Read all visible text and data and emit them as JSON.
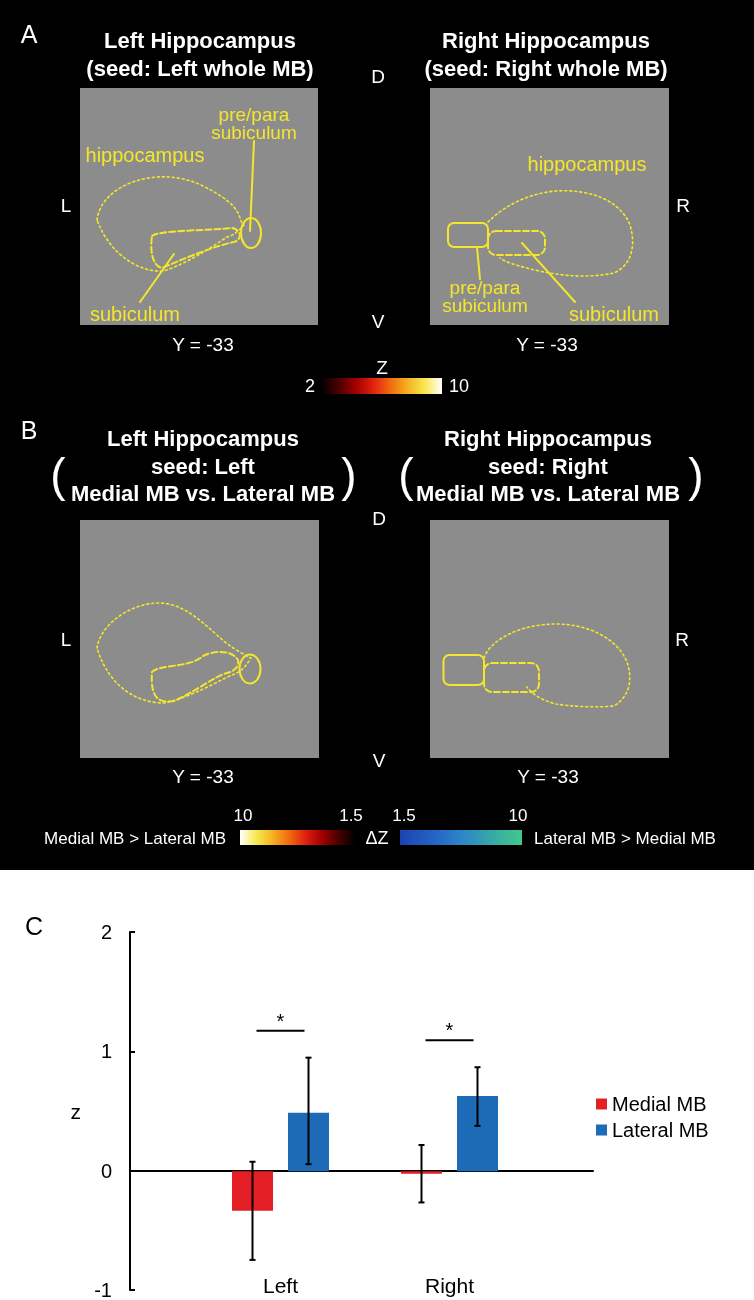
{
  "chart_data": [
    {
      "type": "other",
      "title": "A",
      "annotations": [
        "Left Hippocampus\n(seed: Left whole MB)",
        "Right Hippocampus\n(seed: Right whole MB)",
        "D",
        "V",
        "L",
        "R",
        "Y = -33",
        "Y = -33",
        "hippocampus",
        "pre/para\nsubiculum",
        "subiculum",
        "hippocampus",
        "pre/para\nsubiculum",
        "subiculum",
        "2",
        "10"
      ],
      "clabel": "Z"
    },
    {
      "type": "other",
      "title": "B",
      "annotations": [
        "Left Hippocampus\nseed: Left\nMedial MB vs. Lateral MB",
        "(",
        ")",
        "Right Hippocampus\nseed: Right\nMedial MB vs. Lateral MB",
        "(",
        ")",
        "D",
        "V",
        "L",
        "R",
        "Y = -33",
        "Y = -33",
        "Medial MB > Lateral MB",
        "Lateral MB > Medial MB",
        "10",
        "1.5",
        "1.5",
        "10"
      ],
      "clabel": "ΔZ"
    },
    {
      "type": "bar",
      "title": "C",
      "ylabel": "z",
      "categories": [
        "Left",
        "Right"
      ],
      "series": [
        {
          "name": "Medial MB",
          "color": "#e41e25",
          "values": [
            -0.33,
            -0.02
          ],
          "errors": [
            [
              -0.74,
              0.08
            ],
            [
              -0.26,
              0.22
            ]
          ]
        },
        {
          "name": "Lateral MB",
          "color": "#1d6bb6",
          "values": [
            0.49,
            0.63
          ],
          "errors": [
            [
              0.06,
              0.95
            ],
            [
              0.38,
              0.87
            ]
          ]
        }
      ],
      "ylim": [
        -1,
        2
      ],
      "yticks": [
        -1,
        0,
        1,
        2
      ],
      "legend": "right",
      "annotations": [
        "*",
        "*"
      ]
    }
  ]
}
